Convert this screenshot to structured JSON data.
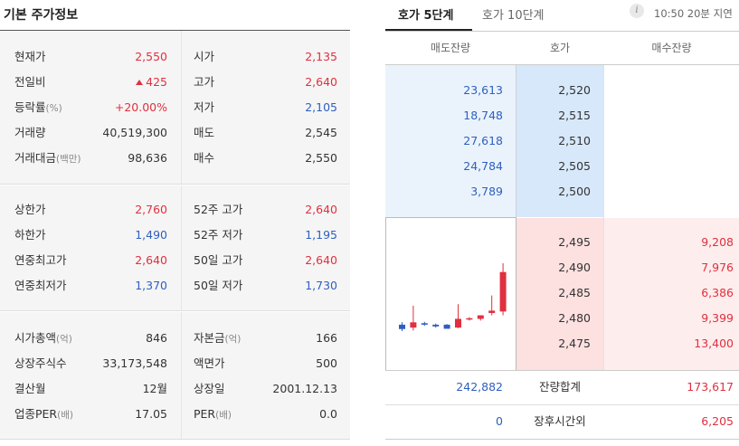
{
  "left_panel": {
    "title": "기본 주가정보",
    "section1": [
      {
        "label": "현재가",
        "unit": "",
        "value": "2,550",
        "color": "red",
        "arrow": false,
        "label2": "시가",
        "unit2": "",
        "value2": "2,135",
        "color2": "red"
      },
      {
        "label": "전일비",
        "unit": "",
        "value": "425",
        "color": "red",
        "arrow": true,
        "label2": "고가",
        "unit2": "",
        "value2": "2,640",
        "color2": "red"
      },
      {
        "label": "등락률",
        "unit": "(%)",
        "value": "+20.00%",
        "color": "red",
        "arrow": false,
        "label2": "저가",
        "unit2": "",
        "value2": "2,105",
        "color2": "blue"
      },
      {
        "label": "거래량",
        "unit": "",
        "value": "40,519,300",
        "color": "dark",
        "arrow": false,
        "label2": "매도",
        "unit2": "",
        "value2": "2,545",
        "color2": "dark"
      },
      {
        "label": "거래대금",
        "unit": "(백만)",
        "value": "98,636",
        "color": "dark",
        "arrow": false,
        "label2": "매수",
        "unit2": "",
        "value2": "2,550",
        "color2": "dark"
      }
    ],
    "section2": [
      {
        "label": "상한가",
        "unit": "",
        "value": "2,760",
        "color": "red",
        "label2": "52주 고가",
        "unit2": "",
        "value2": "2,640",
        "color2": "red"
      },
      {
        "label": "하한가",
        "unit": "",
        "value": "1,490",
        "color": "blue",
        "label2": "52주 저가",
        "unit2": "",
        "value2": "1,195",
        "color2": "blue"
      },
      {
        "label": "연중최고가",
        "unit": "",
        "value": "2,640",
        "color": "red",
        "label2": "50일 고가",
        "unit2": "",
        "value2": "2,640",
        "color2": "red"
      },
      {
        "label": "연중최저가",
        "unit": "",
        "value": "1,370",
        "color": "blue",
        "label2": "50일 저가",
        "unit2": "",
        "value2": "1,730",
        "color2": "blue"
      }
    ],
    "section3": [
      {
        "label": "시가총액",
        "unit": "(억)",
        "value": "846",
        "color": "dark",
        "label2": "자본금",
        "unit2": "(억)",
        "value2": "166",
        "color2": "dark"
      },
      {
        "label": "상장주식수",
        "unit": "",
        "value": "33,173,548",
        "color": "dark",
        "label2": "액면가",
        "unit2": "",
        "value2": "500",
        "color2": "dark"
      },
      {
        "label": "결산월",
        "unit": "",
        "value": "12월",
        "color": "dark",
        "label2": "상장일",
        "unit2": "",
        "value2": "2001.12.13",
        "color2": "dark"
      },
      {
        "label": "업종PER",
        "unit": "(배)",
        "value": "17.05",
        "color": "dark",
        "label2": "PER",
        "unit2": "(배)",
        "value2": "0.0",
        "color2": "dark"
      }
    ]
  },
  "right_panel": {
    "tabs": [
      {
        "label": "호가 5단계",
        "active": true
      },
      {
        "label": "호가 10단계",
        "active": false
      }
    ],
    "info_icon": "info-icon",
    "delay_text": "10:50 20분 지연",
    "headers": {
      "sell": "매도잔량",
      "price": "호가",
      "buy": "매수잔량"
    },
    "sell_orders": [
      {
        "qty": "23,613",
        "price": "2,520"
      },
      {
        "qty": "18,748",
        "price": "2,515"
      },
      {
        "qty": "27,618",
        "price": "2,510"
      },
      {
        "qty": "24,784",
        "price": "2,505"
      },
      {
        "qty": "3,789",
        "price": "2,500"
      }
    ],
    "buy_orders": [
      {
        "price": "2,495",
        "qty": "9,208"
      },
      {
        "price": "2,490",
        "qty": "7,976"
      },
      {
        "price": "2,485",
        "qty": "6,386"
      },
      {
        "price": "2,480",
        "qty": "9,399"
      },
      {
        "price": "2,475",
        "qty": "13,400"
      }
    ],
    "totals": [
      {
        "sell": "242,882",
        "label": "잔량합계",
        "buy": "173,617"
      },
      {
        "sell": "0",
        "label": "장후시간외",
        "buy": "6,205"
      }
    ],
    "mini_chart": {
      "type": "candlestick",
      "up_color": "#e0303f",
      "down_color": "#2f5fbf",
      "candles": [
        {
          "o": 2120,
          "c": 2105,
          "h": 2128,
          "l": 2098
        },
        {
          "o": 2110,
          "c": 2128,
          "h": 2185,
          "l": 2100
        },
        {
          "o": 2125,
          "c": 2120,
          "h": 2130,
          "l": 2116
        },
        {
          "o": 2120,
          "c": 2114,
          "h": 2124,
          "l": 2110
        },
        {
          "o": 2120,
          "c": 2106,
          "h": 2122,
          "l": 2106
        },
        {
          "o": 2110,
          "c": 2140,
          "h": 2190,
          "l": 2108
        },
        {
          "o": 2140,
          "c": 2142,
          "h": 2146,
          "l": 2134
        },
        {
          "o": 2140,
          "c": 2152,
          "h": 2152,
          "l": 2134
        },
        {
          "o": 2160,
          "c": 2168,
          "h": 2220,
          "l": 2152
        },
        {
          "o": 2165,
          "c": 2300,
          "h": 2330,
          "l": 2152
        }
      ]
    }
  }
}
